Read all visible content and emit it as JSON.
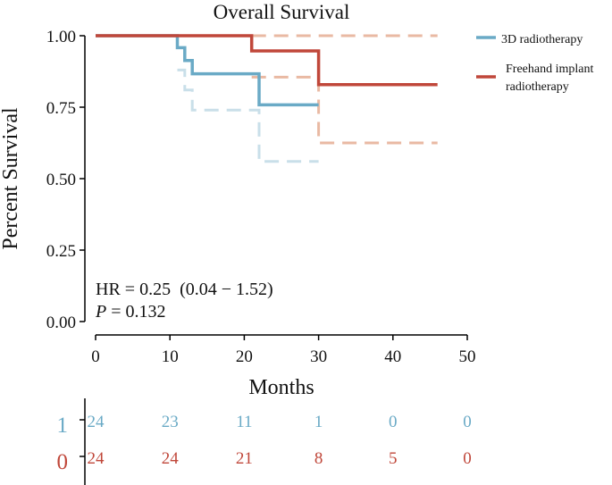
{
  "chart_data": {
    "type": "line",
    "subtype": "kaplan-meier",
    "title": "Overall Survival",
    "xlabel": "Months",
    "ylabel": "Percent Survival",
    "xlim": [
      0,
      50
    ],
    "ylim": [
      0,
      1
    ],
    "x_ticks": [
      0,
      10,
      20,
      30,
      40,
      50
    ],
    "y_ticks": [
      "0.00",
      "0.25",
      "0.50",
      "0.75",
      "1.00"
    ],
    "grid": false,
    "legend_position": "top-right",
    "series": [
      {
        "key": "3d",
        "name": "3D radiotherapy",
        "color": "#6aaac6",
        "ci_color": "#c9dfe9",
        "curve": [
          [
            0,
            1.0
          ],
          [
            11,
            1.0
          ],
          [
            11,
            0.958
          ],
          [
            12,
            0.958
          ],
          [
            12,
            0.913
          ],
          [
            13,
            0.913
          ],
          [
            13,
            0.867
          ],
          [
            22,
            0.867
          ],
          [
            22,
            0.758
          ],
          [
            30,
            0.758
          ]
        ],
        "lower_ci": [
          [
            11,
            0.88
          ],
          [
            12,
            0.88
          ],
          [
            12,
            0.81
          ],
          [
            13,
            0.81
          ],
          [
            13,
            0.74
          ],
          [
            22,
            0.74
          ],
          [
            22,
            0.56
          ],
          [
            30,
            0.56
          ]
        ],
        "upper_ci": []
      },
      {
        "key": "fh",
        "name": "Freehand implant radiotherapy",
        "color": "#c0473a",
        "ci_color": "#e9b9a3",
        "curve": [
          [
            0,
            1.0
          ],
          [
            21,
            1.0
          ],
          [
            21,
            0.947
          ],
          [
            30,
            0.947
          ],
          [
            30,
            0.829
          ],
          [
            46,
            0.829
          ]
        ],
        "lower_ci": [
          [
            21,
            0.855
          ],
          [
            30,
            0.855
          ],
          [
            30,
            0.625
          ],
          [
            46,
            0.625
          ]
        ],
        "upper_ci": [
          [
            21,
            1.0
          ],
          [
            46,
            1.0
          ]
        ]
      }
    ],
    "annotations": {
      "hr_text": "HR = 0.25  (0.04 − 1.52)",
      "p_label": "P",
      "p_value_text": " = 0.132"
    },
    "risk_table": {
      "times": [
        0,
        10,
        20,
        30,
        40,
        50
      ],
      "rows": [
        {
          "label": "1",
          "color": "#6aaac6",
          "counts": [
            "24",
            "23",
            "11",
            "1",
            "0",
            "0"
          ]
        },
        {
          "label": "0",
          "color": "#c0473a",
          "counts": [
            "24",
            "24",
            "21",
            "8",
            "5",
            "0"
          ]
        }
      ]
    }
  },
  "legend": {
    "item1_label": "3D radiotherapy",
    "item2_line1": "Freehand implant",
    "item2_line2": "radiotherapy"
  }
}
